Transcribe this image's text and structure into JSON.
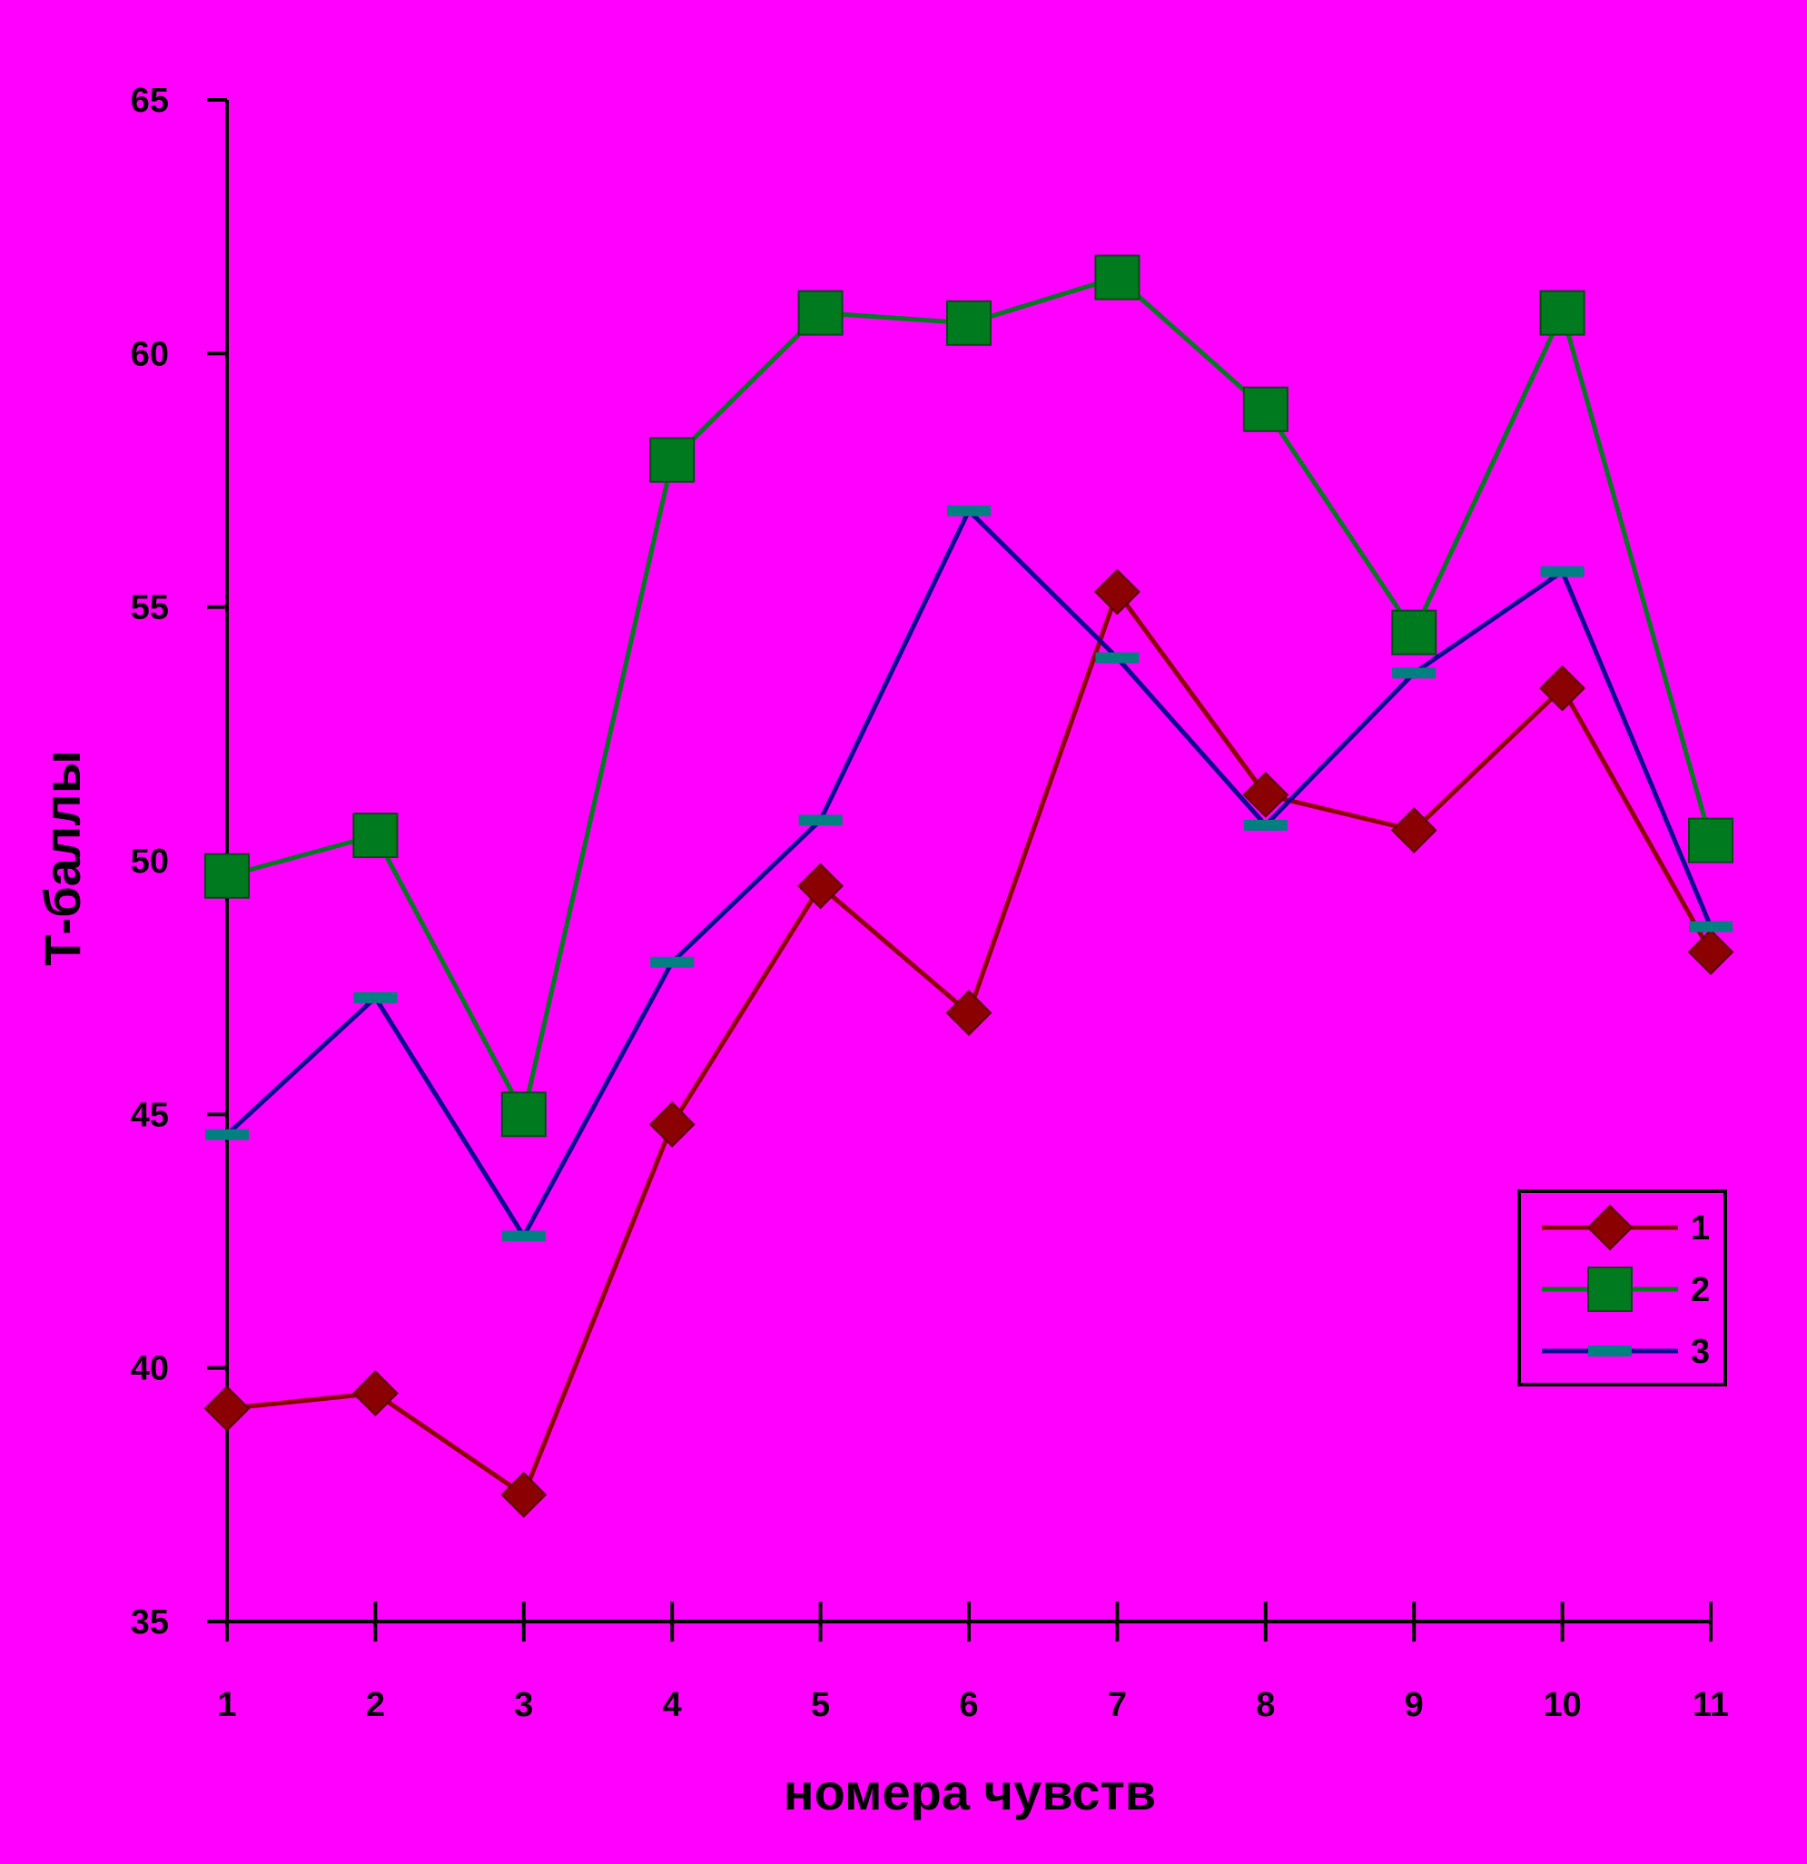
{
  "colors": {
    "background": "#ff00ff",
    "axis": "#000000",
    "series_1": "#8b0000",
    "series_2": "#007a1e",
    "series_3": "#0a0a8f",
    "series_3_marker": "#008080"
  },
  "chart_data": {
    "type": "line",
    "title": "",
    "xlabel": "номера чувств",
    "ylabel": "Т-баллы",
    "categories": [
      "1",
      "2",
      "3",
      "4",
      "5",
      "6",
      "7",
      "8",
      "9",
      "10",
      "11"
    ],
    "ylim": [
      35,
      65
    ],
    "yticks": [
      "35",
      "40",
      "45",
      "50",
      "55",
      "60",
      "65"
    ],
    "grid": false,
    "legend_position": "bottom-right",
    "series": [
      {
        "name": "1",
        "marker": "diamond",
        "color_key": "series_1",
        "values": [
          39.2,
          39.5,
          37.5,
          44.8,
          49.5,
          47.0,
          55.3,
          51.3,
          50.6,
          53.4,
          48.2
        ]
      },
      {
        "name": "2",
        "marker": "square",
        "color_key": "series_2",
        "values": [
          49.7,
          50.5,
          45.0,
          57.9,
          60.8,
          60.6,
          61.5,
          58.9,
          54.5,
          60.8,
          50.4
        ]
      },
      {
        "name": "3",
        "marker": "dash",
        "color_key": "series_3",
        "values": [
          44.6,
          47.3,
          42.6,
          48.0,
          50.8,
          56.9,
          54.0,
          50.7,
          53.7,
          55.7,
          48.7
        ]
      }
    ]
  }
}
